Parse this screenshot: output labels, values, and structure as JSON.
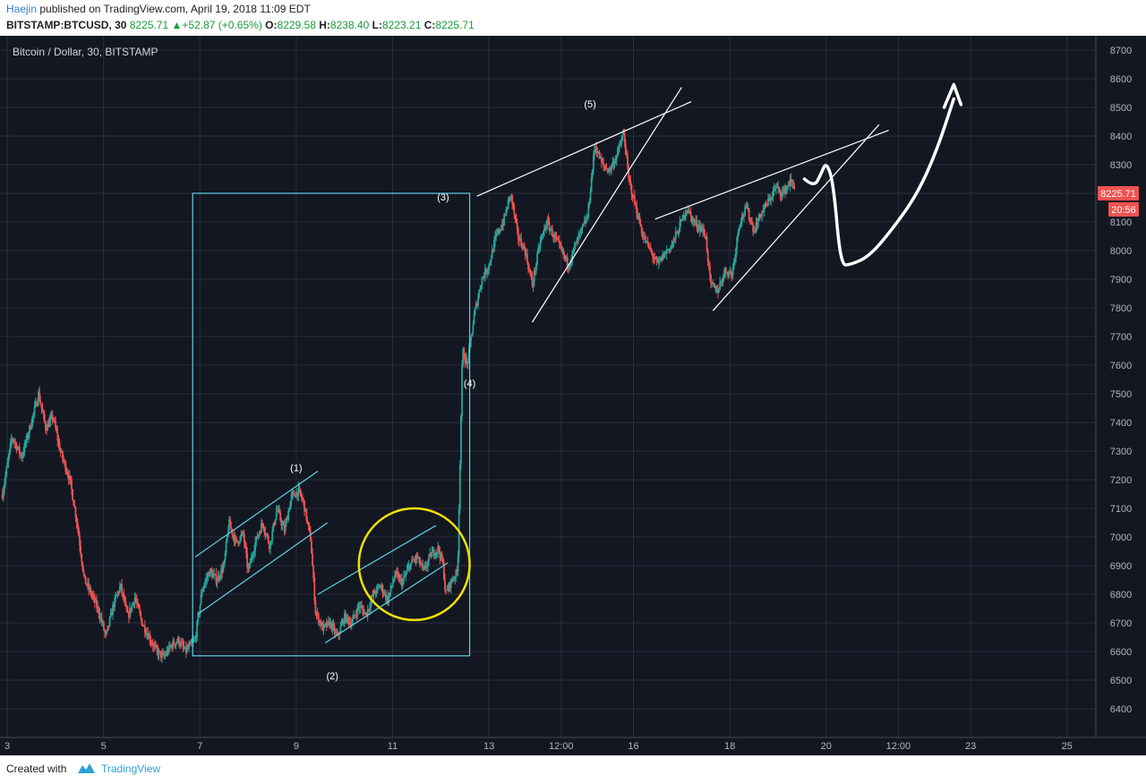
{
  "header": {
    "author": "Haejin",
    "published_text": "published on TradingView.com, April 19, 2018 11:09 EDT",
    "symbol": "BITSTAMP:BTCUSD, 30",
    "last": "8225.71",
    "change": "+52.87 (+0.65%)",
    "o_label": "O:",
    "o_value": "8229.58",
    "h_label": "H:",
    "h_value": "8238.40",
    "l_label": "L:",
    "l_value": "8223.21",
    "c_label": "C:",
    "c_value": "8225.71"
  },
  "footer": {
    "created_with": "Created with",
    "brand": "TradingView"
  },
  "colors": {
    "background": "#131722",
    "up": "#26a69a",
    "down": "#ef5350",
    "grid": "#2a2e39",
    "cyan": "#5ed0e6",
    "yellow": "#f2e100",
    "white": "#ffffff",
    "price_badge": "#ef5350"
  },
  "chart_data": {
    "type": "candlestick",
    "title": "Bitcoin / Dollar, 30, BITSTAMP",
    "y_ticks": [
      6400,
      6500,
      6600,
      6700,
      6800,
      6900,
      7000,
      7100,
      7200,
      7300,
      7400,
      7500,
      7600,
      7700,
      7800,
      7900,
      8000,
      8100,
      8200,
      8300,
      8400,
      8500,
      8600,
      8700
    ],
    "ylim": [
      6300,
      8750
    ],
    "x_ticks": [
      "3",
      "5",
      "7",
      "9",
      "11",
      "13",
      "12:00",
      "16",
      "18",
      "20",
      "12:00",
      "23",
      "25"
    ],
    "x_tick_time": [
      3,
      5,
      7,
      9,
      11,
      13,
      14.5,
      16,
      18,
      20,
      21.5,
      23,
      25
    ],
    "xlim": [
      2.85,
      25.6
    ],
    "current_price": "8225.71",
    "countdown": "20:56",
    "price_path": [
      [
        2.9,
        7150
      ],
      [
        3.1,
        7350
      ],
      [
        3.3,
        7280
      ],
      [
        3.5,
        7400
      ],
      [
        3.65,
        7500
      ],
      [
        3.8,
        7380
      ],
      [
        3.95,
        7420
      ],
      [
        4.1,
        7300
      ],
      [
        4.3,
        7200
      ],
      [
        4.45,
        7050
      ],
      [
        4.6,
        6850
      ],
      [
        4.75,
        6800
      ],
      [
        4.9,
        6740
      ],
      [
        5.05,
        6650
      ],
      [
        5.2,
        6760
      ],
      [
        5.35,
        6830
      ],
      [
        5.5,
        6720
      ],
      [
        5.65,
        6790
      ],
      [
        5.8,
        6700
      ],
      [
        5.95,
        6650
      ],
      [
        6.1,
        6600
      ],
      [
        6.25,
        6580
      ],
      [
        6.4,
        6620
      ],
      [
        6.55,
        6640
      ],
      [
        6.7,
        6600
      ],
      [
        6.9,
        6640
      ],
      [
        7.05,
        6820
      ],
      [
        7.2,
        6880
      ],
      [
        7.35,
        6850
      ],
      [
        7.5,
        6900
      ],
      [
        7.6,
        7050
      ],
      [
        7.75,
        6980
      ],
      [
        7.9,
        7010
      ],
      [
        8.0,
        6880
      ],
      [
        8.15,
        6980
      ],
      [
        8.3,
        7050
      ],
      [
        8.45,
        6970
      ],
      [
        8.6,
        7100
      ],
      [
        8.75,
        7020
      ],
      [
        8.9,
        7140
      ],
      [
        9.05,
        7160
      ],
      [
        9.15,
        7120
      ],
      [
        9.3,
        6990
      ],
      [
        9.4,
        6740
      ],
      [
        9.55,
        6680
      ],
      [
        9.7,
        6700
      ],
      [
        9.85,
        6650
      ],
      [
        10.0,
        6720
      ],
      [
        10.15,
        6700
      ],
      [
        10.3,
        6760
      ],
      [
        10.45,
        6730
      ],
      [
        10.6,
        6800
      ],
      [
        10.75,
        6830
      ],
      [
        10.9,
        6780
      ],
      [
        11.05,
        6870
      ],
      [
        11.2,
        6840
      ],
      [
        11.35,
        6900
      ],
      [
        11.5,
        6930
      ],
      [
        11.65,
        6880
      ],
      [
        11.8,
        6940
      ],
      [
        11.95,
        6960
      ],
      [
        12.05,
        6900
      ],
      [
        12.1,
        6800
      ],
      [
        12.2,
        6840
      ],
      [
        12.35,
        6880
      ],
      [
        12.45,
        7650
      ],
      [
        12.55,
        7600
      ],
      [
        12.7,
        7780
      ],
      [
        12.85,
        7900
      ],
      [
        13.0,
        7950
      ],
      [
        13.15,
        8050
      ],
      [
        13.3,
        8100
      ],
      [
        13.45,
        8200
      ],
      [
        13.6,
        8050
      ],
      [
        13.75,
        8000
      ],
      [
        13.9,
        7880
      ],
      [
        14.05,
        8020
      ],
      [
        14.2,
        8100
      ],
      [
        14.35,
        8050
      ],
      [
        14.5,
        8000
      ],
      [
        14.65,
        7950
      ],
      [
        14.8,
        8020
      ],
      [
        14.95,
        8080
      ],
      [
        15.05,
        8120
      ],
      [
        15.2,
        8370
      ],
      [
        15.35,
        8300
      ],
      [
        15.5,
        8280
      ],
      [
        15.65,
        8330
      ],
      [
        15.8,
        8410
      ],
      [
        15.9,
        8250
      ],
      [
        16.05,
        8150
      ],
      [
        16.2,
        8050
      ],
      [
        16.35,
        8000
      ],
      [
        16.5,
        7950
      ],
      [
        16.65,
        7990
      ],
      [
        16.8,
        8020
      ],
      [
        16.95,
        8080
      ],
      [
        17.1,
        8150
      ],
      [
        17.25,
        8100
      ],
      [
        17.4,
        8080
      ],
      [
        17.5,
        8050
      ],
      [
        17.6,
        7880
      ],
      [
        17.75,
        7860
      ],
      [
        17.9,
        7930
      ],
      [
        18.05,
        7920
      ],
      [
        18.2,
        8100
      ],
      [
        18.35,
        8150
      ],
      [
        18.5,
        8070
      ],
      [
        18.65,
        8130
      ],
      [
        18.8,
        8170
      ],
      [
        18.95,
        8220
      ],
      [
        19.1,
        8200
      ],
      [
        19.25,
        8240
      ],
      [
        19.35,
        8226
      ]
    ],
    "annotations": {
      "labels": [
        {
          "text": "(1)",
          "t": 9.0,
          "p": 7230
        },
        {
          "text": "(2)",
          "t": 9.75,
          "p": 6503
        },
        {
          "text": "(3)",
          "t": 12.05,
          "p": 8175
        },
        {
          "text": "(4)",
          "t": 12.6,
          "p": 7525
        },
        {
          "text": "(5)",
          "t": 15.1,
          "p": 8500
        }
      ],
      "box": {
        "t1": 6.85,
        "t2": 12.6,
        "p1": 6585,
        "p2": 8200
      },
      "circle": {
        "t": 11.45,
        "p": 6905,
        "rt": 1.15,
        "rp": 195
      },
      "channels_cyan": [
        [
          [
            6.9,
            6930
          ],
          [
            9.45,
            7230
          ]
        ],
        [
          [
            6.95,
            6730
          ],
          [
            9.65,
            7050
          ]
        ],
        [
          [
            9.45,
            6800
          ],
          [
            11.9,
            7040
          ]
        ],
        [
          [
            9.6,
            6630
          ],
          [
            12.15,
            6910
          ]
        ]
      ],
      "channels_white": [
        [
          [
            12.75,
            8190
          ],
          [
            17.2,
            8520
          ]
        ],
        [
          [
            13.9,
            7750
          ],
          [
            17.0,
            8570
          ]
        ],
        [
          [
            16.45,
            8110
          ],
          [
            21.3,
            8420
          ]
        ],
        [
          [
            17.65,
            7790
          ],
          [
            21.1,
            8440
          ]
        ]
      ],
      "projection": [
        [
          19.55,
          8250
        ],
        [
          19.75,
          8220
        ],
        [
          19.9,
          8270
        ],
        [
          20.0,
          8310
        ],
        [
          20.15,
          8240
        ],
        [
          20.3,
          7950
        ],
        [
          20.5,
          7950
        ],
        [
          20.9,
          7980
        ],
        [
          21.4,
          8080
        ],
        [
          21.9,
          8200
        ],
        [
          22.3,
          8350
        ],
        [
          22.65,
          8530
        ]
      ],
      "arrow_head": [
        [
          22.45,
          8500
        ],
        [
          22.65,
          8580
        ],
        [
          22.8,
          8510
        ]
      ]
    }
  }
}
